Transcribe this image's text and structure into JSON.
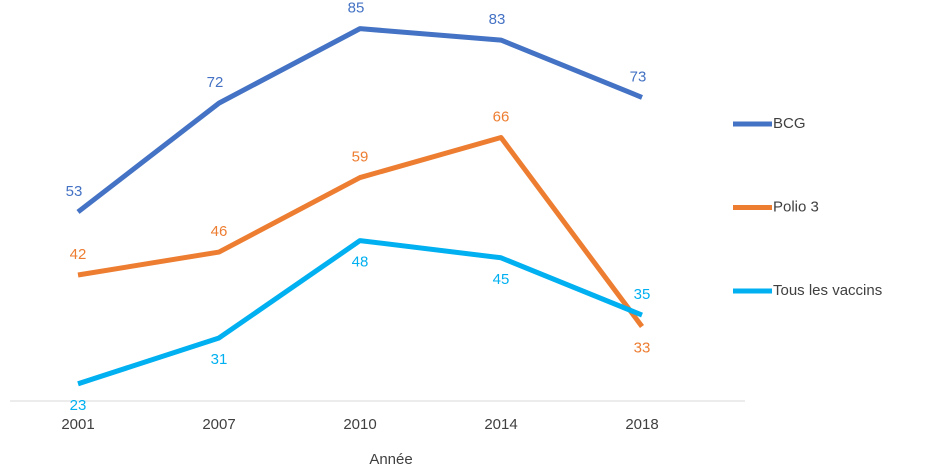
{
  "chart_data": {
    "type": "line",
    "x_label": "Année",
    "categories": [
      "2001",
      "2007",
      "2010",
      "2014",
      "2018"
    ],
    "series": [
      {
        "name": "BCG",
        "color": "#4472c4",
        "values": [
          53,
          72,
          85,
          83,
          73
        ]
      },
      {
        "name": "Polio 3",
        "color": "#ed7d31",
        "values": [
          42,
          46,
          59,
          66,
          33
        ]
      },
      {
        "name": "Tous les vaccins",
        "color": "#00b0f0",
        "values": [
          23,
          31,
          48,
          45,
          35
        ]
      }
    ],
    "ylim": [
      20,
      90
    ],
    "legend": "right"
  }
}
